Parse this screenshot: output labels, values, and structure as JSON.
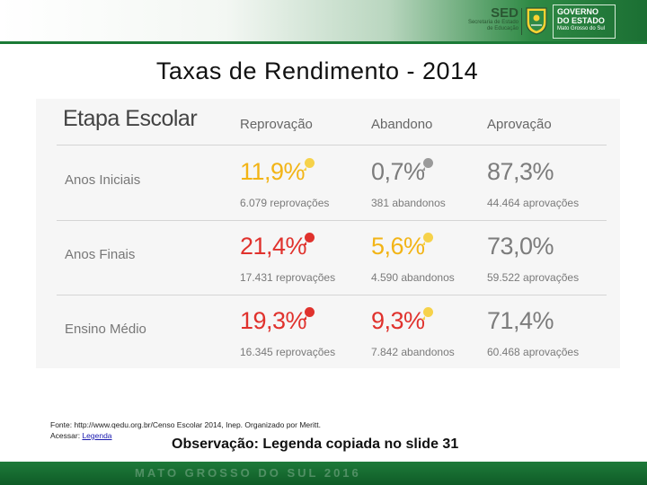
{
  "header": {
    "sed": "SED",
    "sed_sub1": "Secretaria de Estado",
    "sed_sub2": "de Educação",
    "gov_line1": "GOVERNO",
    "gov_line2": "DO ESTADO",
    "gov_line3": "Mato Grosso do Sul"
  },
  "title": "Taxas de Rendimento - 2014",
  "table": {
    "stage_header": "Etapa Escolar",
    "columns": [
      "Reprovação",
      "Abandono",
      "Aprovação"
    ],
    "rows": [
      {
        "label": "Anos Iniciais",
        "reprovacao": {
          "value": "11,9%",
          "detail": "6.079 reprovações",
          "color": "#f2b416"
        },
        "abandono": {
          "value": "0,7%",
          "detail": "381 abandonos",
          "color": "#7c7c7c"
        },
        "aprovacao": {
          "value": "87,3%",
          "detail": "44.464 aprovações"
        }
      },
      {
        "label": "Anos Finais",
        "reprovacao": {
          "value": "21,4%",
          "detail": "17.431 reprovações",
          "color": "#e0322d"
        },
        "abandono": {
          "value": "5,6%",
          "detail": "4.590 abandonos",
          "color": "#f2b416"
        },
        "aprovacao": {
          "value": "73,0%",
          "detail": "59.522 aprovações"
        }
      },
      {
        "label": "Ensino Médio",
        "reprovacao": {
          "value": "19,3%",
          "detail": "16.345 reprovações",
          "color": "#e0322d"
        },
        "abandono": {
          "value": "9,3%",
          "detail": "7.842 abandonos",
          "color": "#f2b416"
        },
        "aprovacao": {
          "value": "71,4%",
          "detail": "60.468 aprovações"
        }
      }
    ]
  },
  "source_line": "Fonte: http://www.qedu.org.br/Censo Escolar 2014, Inep. Organizado por Meritt.",
  "access_prefix": "Acessar: ",
  "access_link": "Legenda",
  "observation": "Observação: Legenda copiada no slide 31",
  "footer_text": "MATO GROSSO DO SUL 2016",
  "colors": {
    "brand_green": "#1b7a36",
    "approval_gray": "#7c7c7c"
  }
}
